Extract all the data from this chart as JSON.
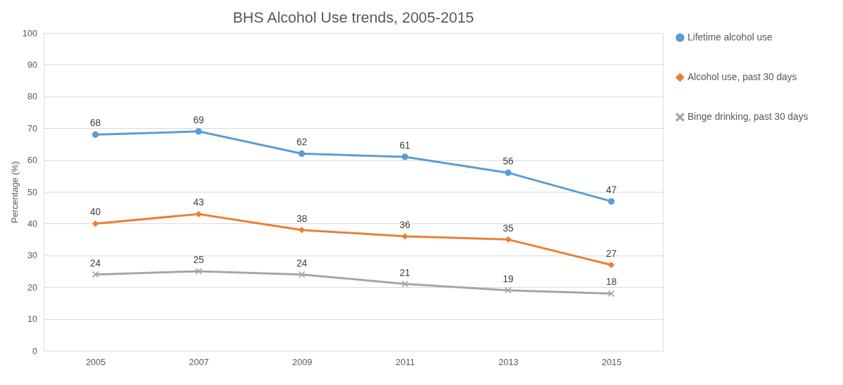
{
  "chart_data": {
    "type": "line",
    "title": "BHS Alcohol Use trends, 2005-2015",
    "ylabel": "Percentage (%)",
    "categories": [
      "2005",
      "2007",
      "2009",
      "2011",
      "2013",
      "2015"
    ],
    "series": [
      {
        "name": "Lifetime alcohol use",
        "color": "#5b9bd5",
        "marker": "circle",
        "values": [
          68,
          69,
          62,
          61,
          56,
          47
        ]
      },
      {
        "name": "Alcohol use, past 30 days",
        "color": "#ed7d31",
        "marker": "diamond",
        "values": [
          40,
          43,
          38,
          36,
          35,
          27
        ]
      },
      {
        "name": "Binge drinking, past 30 days",
        "color": "#a5a5a5",
        "marker": "cross",
        "values": [
          24,
          25,
          24,
          21,
          19,
          18
        ]
      }
    ],
    "ylim": [
      0,
      100
    ],
    "yticks": [
      0,
      10,
      20,
      30,
      40,
      50,
      60,
      70,
      80,
      90,
      100
    ],
    "grid": "y",
    "legend": "right",
    "data_labels": true,
    "line_style": "solid"
  }
}
